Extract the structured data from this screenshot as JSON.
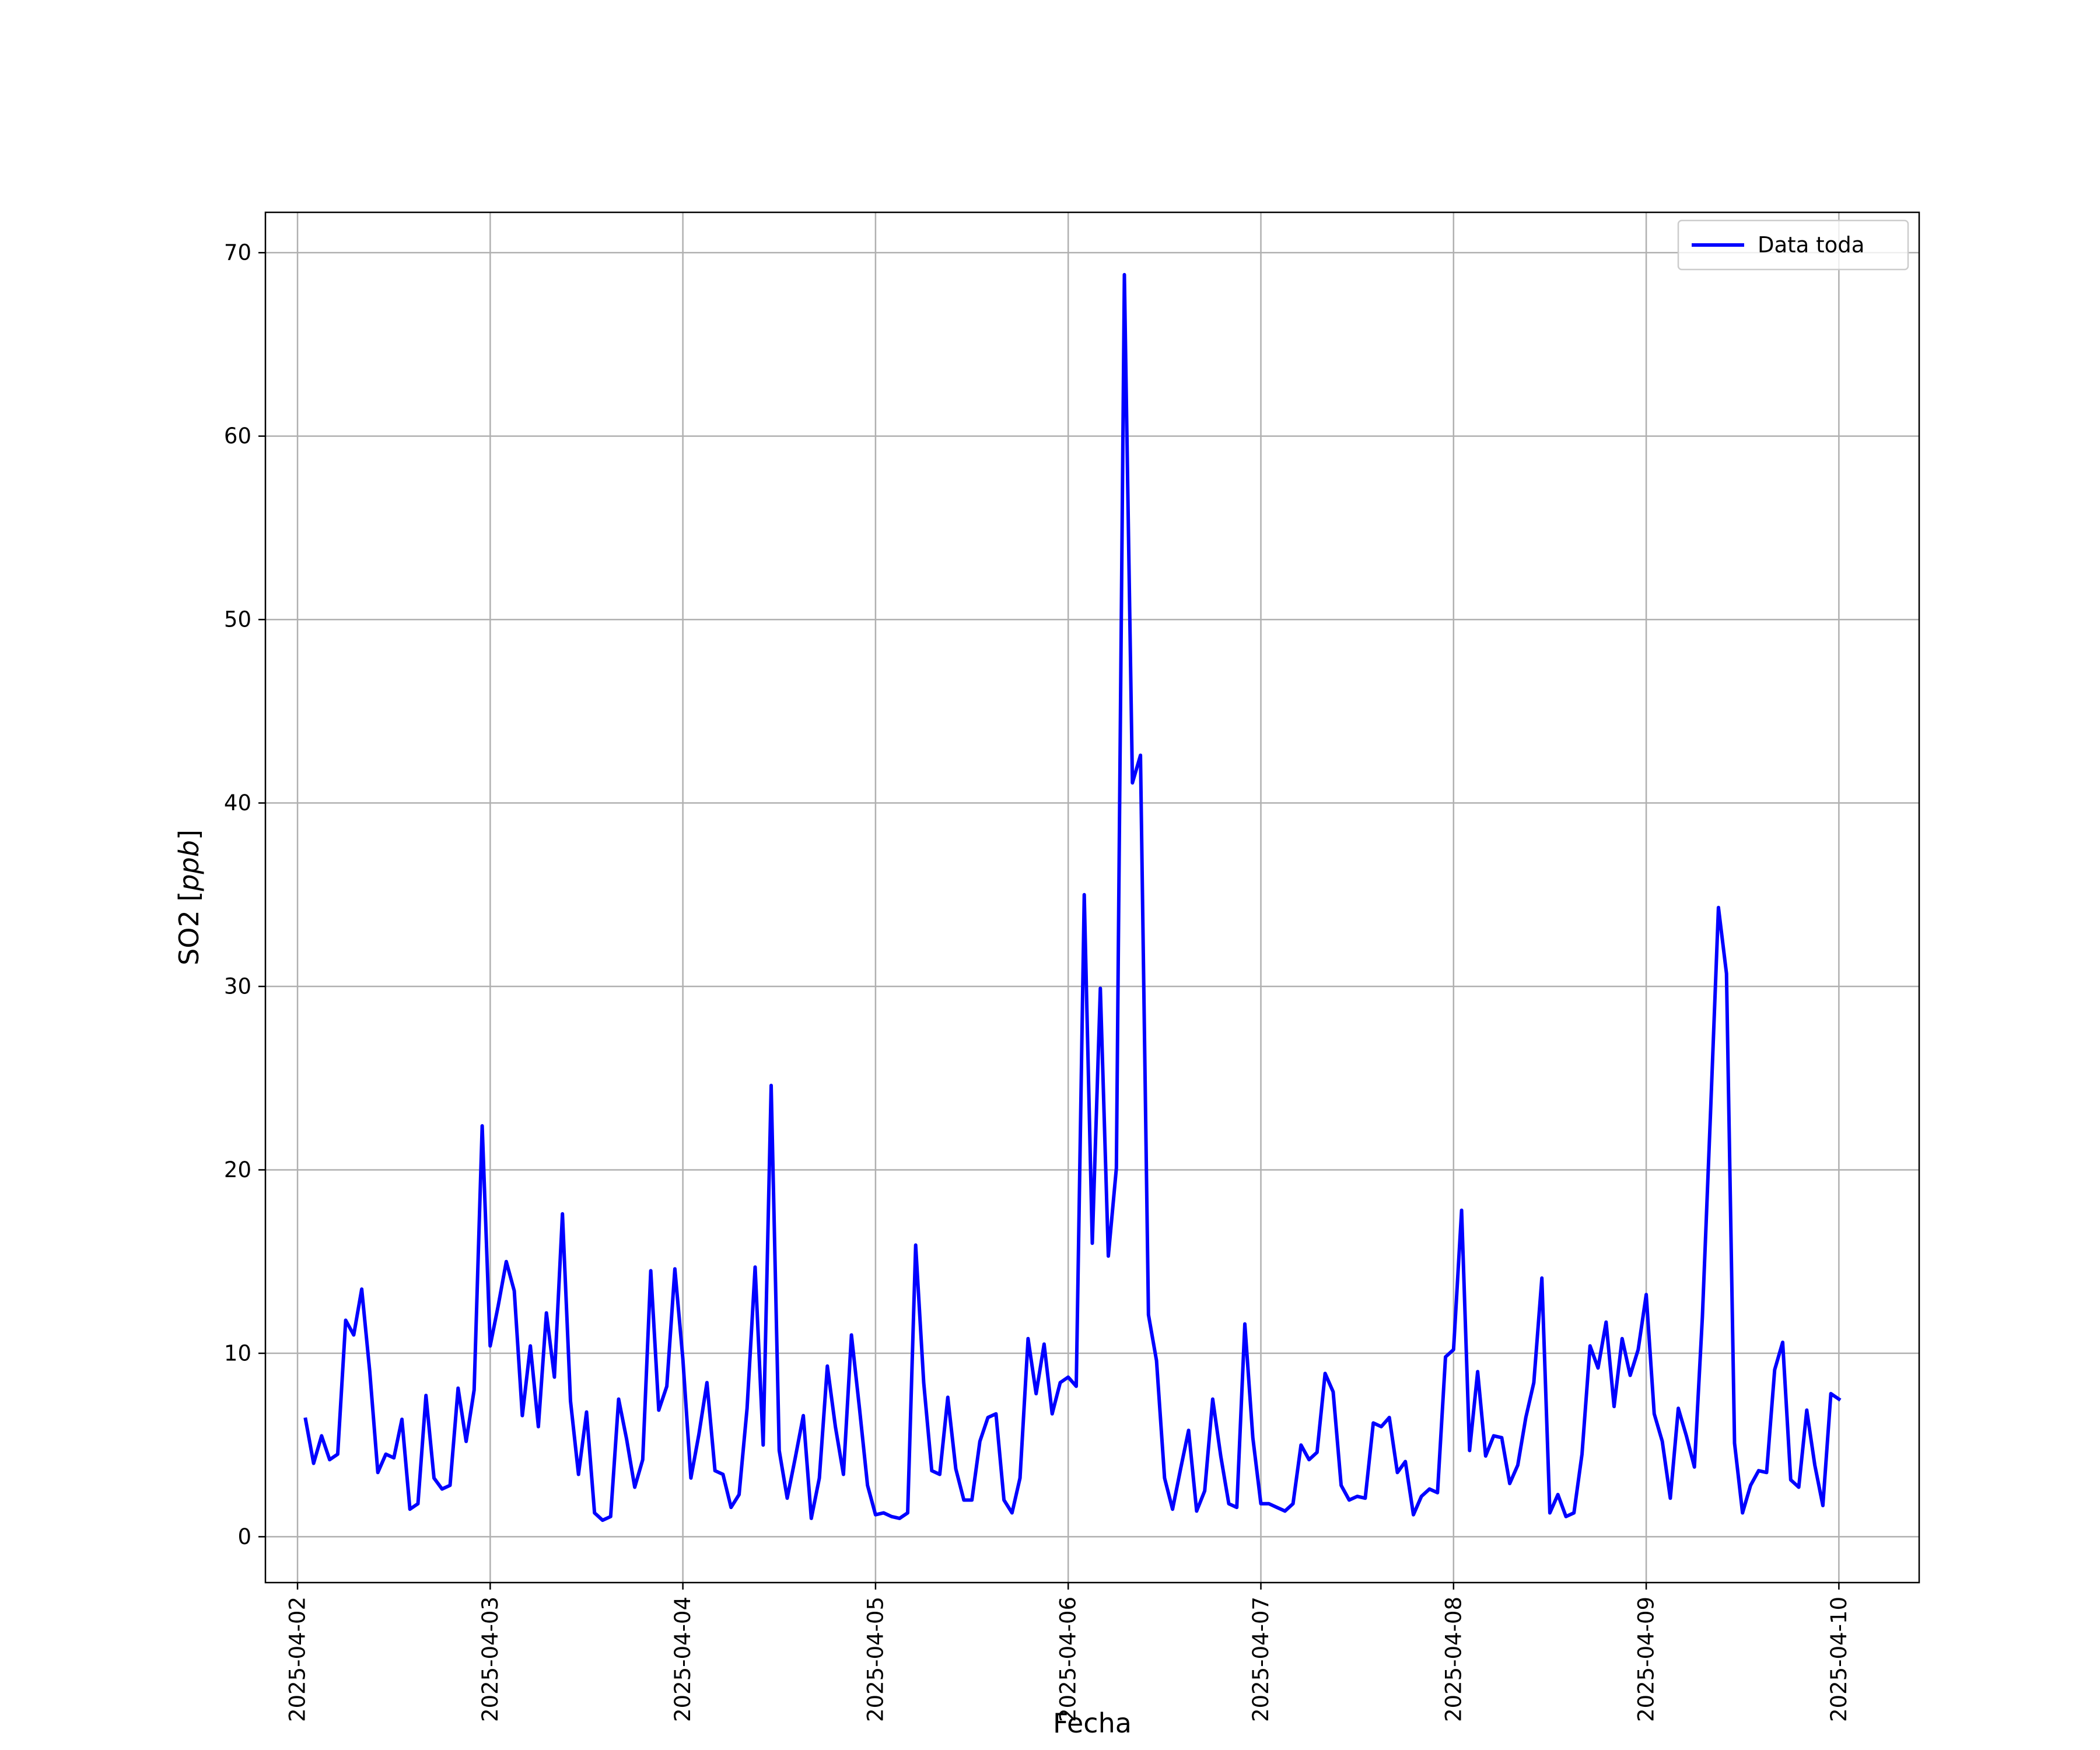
{
  "chart_data": {
    "type": "line",
    "xlabel": "Fecha",
    "ylabel": "SO2 [ppb]",
    "ylabel_parts": {
      "prefix": "SO2 [",
      "unit": "ppb",
      "suffix": "]"
    },
    "x_ticks": [
      "2025-04-02",
      "2025-04-03",
      "2025-04-04",
      "2025-04-05",
      "2025-04-06",
      "2025-04-07",
      "2025-04-08",
      "2025-04-09",
      "2025-04-10"
    ],
    "y_ticks": [
      0,
      10,
      20,
      30,
      40,
      50,
      60,
      70
    ],
    "xlim": [
      "2025-04-01T20:00",
      "2025-04-10T10:00"
    ],
    "ylim": [
      -2.5,
      72.2
    ],
    "grid": true,
    "legend": {
      "position": "top-right",
      "entries": [
        "Data toda"
      ]
    },
    "colors": {
      "line": "#0000ff",
      "grid": "#b0b0b0"
    },
    "series": [
      {
        "name": "Data toda",
        "color": "#0000ff",
        "x_start": "2025-04-02T01:00",
        "x_step_hours": 1,
        "values": [
          6.4,
          4.0,
          5.5,
          4.2,
          4.5,
          11.8,
          11.0,
          13.5,
          9.0,
          3.5,
          4.5,
          4.3,
          6.4,
          1.5,
          1.8,
          7.7,
          3.2,
          2.6,
          2.8,
          8.1,
          5.2,
          8.0,
          22.4,
          10.4,
          12.6,
          15.0,
          13.4,
          6.6,
          10.4,
          6.0,
          12.2,
          8.7,
          17.6,
          7.4,
          3.4,
          6.8,
          1.3,
          0.9,
          1.1,
          7.5,
          5.3,
          2.7,
          4.2,
          14.5,
          6.9,
          8.2,
          14.6,
          9.7,
          3.2,
          5.6,
          8.4,
          3.6,
          3.4,
          1.6,
          2.3,
          7.0,
          14.7,
          5.0,
          24.6,
          4.7,
          2.1,
          4.3,
          6.6,
          1.0,
          3.2,
          9.3,
          6.0,
          3.4,
          11.0,
          7.0,
          2.8,
          1.2,
          1.3,
          1.1,
          1.0,
          1.3,
          15.9,
          8.4,
          3.6,
          3.4,
          7.6,
          3.7,
          2.0,
          2.0,
          5.2,
          6.5,
          6.7,
          2.0,
          1.3,
          3.2,
          10.8,
          7.8,
          10.5,
          6.7,
          8.4,
          8.7,
          8.2,
          35.0,
          16.0,
          29.9,
          15.3,
          20.1,
          68.8,
          41.1,
          42.6,
          12.1,
          9.6,
          3.2,
          1.5,
          3.7,
          5.8,
          1.4,
          2.5,
          7.5,
          4.4,
          1.8,
          1.6,
          11.6,
          5.4,
          1.8,
          1.8,
          1.6,
          1.4,
          1.8,
          5.0,
          4.2,
          4.6,
          8.9,
          7.9,
          2.8,
          2.0,
          2.2,
          2.1,
          6.2,
          6.0,
          6.5,
          3.5,
          4.1,
          1.2,
          2.2,
          2.6,
          2.4,
          9.8,
          10.2,
          17.8,
          4.7,
          9.0,
          4.4,
          5.5,
          5.4,
          2.9,
          3.9,
          6.5,
          8.4,
          14.1,
          1.3,
          2.3,
          1.1,
          1.3,
          4.5,
          10.4,
          9.2,
          11.7,
          7.1,
          10.8,
          8.8,
          10.2,
          13.2,
          6.7,
          5.2,
          2.1,
          7.0,
          5.5,
          3.8,
          12.0,
          23.0,
          34.3,
          30.7,
          5.1,
          1.3,
          2.8,
          3.6,
          3.5,
          9.1,
          10.6,
          3.1,
          2.7,
          6.9,
          3.9,
          1.7,
          7.8,
          7.5
        ]
      }
    ]
  }
}
